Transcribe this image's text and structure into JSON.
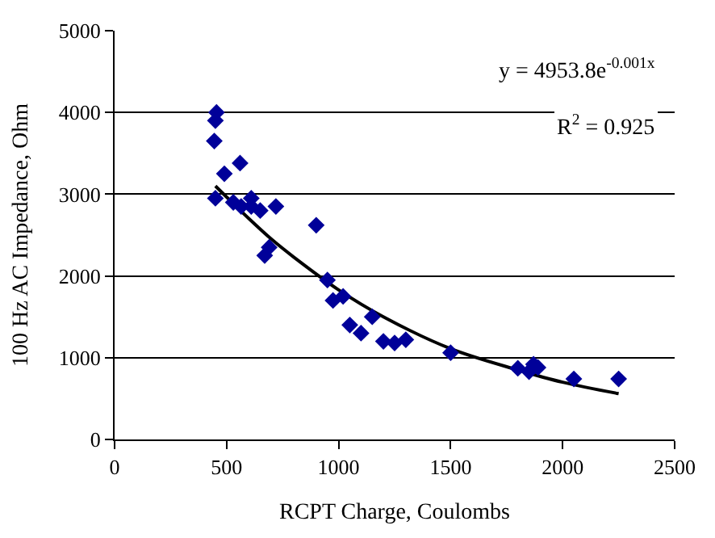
{
  "chart_data": {
    "type": "scatter",
    "xlabel": "RCPT Charge, Coulombs",
    "ylabel": "100 Hz AC Impedance, Ohm",
    "xlim": [
      0,
      2500
    ],
    "xticks": [
      0,
      500,
      1000,
      1500,
      2000,
      2500
    ],
    "ylim": [
      0,
      5000
    ],
    "yticks": [
      0,
      1000,
      2000,
      3000,
      4000,
      5000
    ],
    "grid": "y",
    "legend": false,
    "series": [
      {
        "marker": "diamond",
        "color": "#000099",
        "x": [
          455,
          450,
          445,
          450,
          490,
          560,
          530,
          565,
          610,
          610,
          650,
          670,
          690,
          720,
          900,
          950,
          975,
          1020,
          1050,
          1100,
          1150,
          1200,
          1250,
          1300,
          1500,
          1800,
          1850,
          1870,
          1890,
          2050,
          2250
        ],
        "values": [
          4000,
          3900,
          3650,
          2950,
          3250,
          3380,
          2900,
          2850,
          2950,
          2850,
          2800,
          2250,
          2350,
          2850,
          2620,
          1950,
          1700,
          1750,
          1400,
          1300,
          1500,
          1200,
          1180,
          1220,
          1060,
          870,
          830,
          920,
          880,
          740,
          740
        ]
      },
      {
        "type": "line",
        "marker": "none",
        "color": "#000000",
        "x": [
          450,
          600,
          700,
          800,
          1000,
          1200,
          1500,
          1800,
          2000,
          2250
        ],
        "values": [
          3100,
          2700,
          2450,
          2230,
          1830,
          1500,
          1110,
          850,
          700,
          560
        ]
      }
    ],
    "annotations": [
      "y = 4953.8e$^{-0.001x}$",
      "R$^{2}$ = 0.925"
    ]
  }
}
